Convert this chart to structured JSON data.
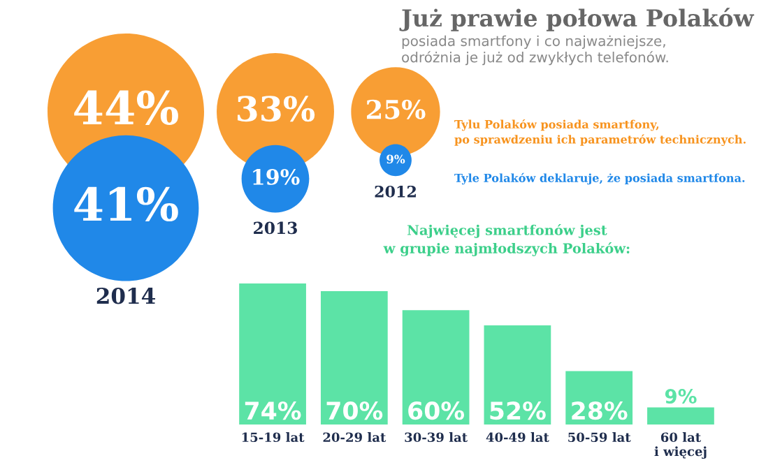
{
  "chart_data": [
    {
      "type": "other",
      "title": "Już prawie połowa Polaków",
      "subtitle": "posiada smartfony i co najważniejsze,\nodróżnia je już od zwykłych telefonów.",
      "categories": [
        "2014",
        "2013",
        "2012"
      ],
      "series": [
        {
          "name": "Tylu Polaków posiada smartfony,\npo sprawdzeniu ich parametrów technicznych.",
          "color": "#f7931e",
          "values": [
            44,
            33,
            25
          ],
          "value_labels": [
            "44%",
            "33%",
            "25%"
          ]
        },
        {
          "name": "Tyle Polaków deklaruje, że posiada smartfona.",
          "color": "#2088e8",
          "values": [
            41,
            19,
            9
          ],
          "value_labels": [
            "41%",
            "19%",
            "9%"
          ]
        }
      ]
    },
    {
      "type": "bar",
      "title": "Najwięcej smartfonów jest\nw grupie najmłodszych Polaków:",
      "categories": [
        "15-19 lat",
        "20-29 lat",
        "30-39 lat",
        "40-49 lat",
        "50-59 lat",
        "60 lat\ni więcej"
      ],
      "series": [
        {
          "color": "#5ce3a6",
          "values": [
            74,
            70,
            60,
            52,
            28,
            9
          ],
          "value_labels": [
            "74%",
            "70%",
            "60%",
            "52%",
            "28%",
            "9%"
          ]
        }
      ]
    }
  ]
}
